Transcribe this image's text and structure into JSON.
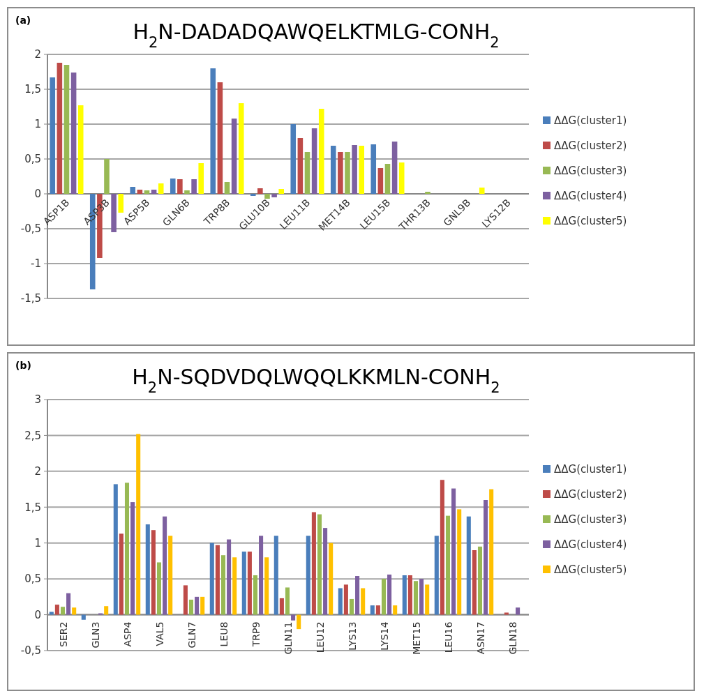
{
  "chart_data": [
    {
      "type": "bar",
      "title": "H$_{2}$N-DADADQAWQELKTMLG-CONH$_{2}$",
      "annotations": [
        "(a)"
      ],
      "categories": [
        "ASP1B",
        "ASP3B",
        "ASP5B",
        "GLN6B",
        "TRP8B",
        "GLU10B",
        "LEU11B",
        "MET14B",
        "LEU15B",
        "THR13B",
        "GNL9B",
        "LYS12B"
      ],
      "series": [
        {
          "name": "ΔΔG(cluster1)",
          "color": "#4a7ebb",
          "values": [
            1.67,
            -1.37,
            0.1,
            0.22,
            1.8,
            -0.03,
            1.0,
            0.69,
            0.71,
            0,
            0,
            0
          ]
        },
        {
          "name": "ΔΔG(cluster2)",
          "color": "#be4b48",
          "values": [
            1.88,
            -0.92,
            0.06,
            0.21,
            1.6,
            0.08,
            0.8,
            0.6,
            0.37,
            0,
            0,
            0
          ]
        },
        {
          "name": "ΔΔG(cluster3)",
          "color": "#98b954",
          "values": [
            1.85,
            0.5,
            0.05,
            0.05,
            0.17,
            -0.07,
            0.6,
            0.6,
            0.43,
            0.03,
            0,
            0
          ]
        },
        {
          "name": "ΔΔG(cluster4)",
          "color": "#7d60a0",
          "values": [
            1.74,
            -0.55,
            0.06,
            0.21,
            1.08,
            -0.05,
            0.94,
            0.7,
            0.75,
            0,
            0,
            0
          ]
        },
        {
          "name": "ΔΔG(cluster5)",
          "color": "#ffff00",
          "values": [
            1.27,
            -0.27,
            0.15,
            0.44,
            1.3,
            0.07,
            1.22,
            0.69,
            0.45,
            0,
            0.09,
            0
          ]
        }
      ],
      "ylim": [
        -1.5,
        2
      ],
      "yticks": [
        {
          "value": -1.5,
          "label": "-1,5"
        },
        -1,
        {
          "value": -0.5,
          "label": "-0,5"
        },
        0,
        {
          "value": 0.5,
          "label": "0,5"
        },
        1,
        {
          "value": 1.5,
          "label": "1,5"
        },
        2
      ],
      "grid": "y",
      "legend": "right"
    },
    {
      "type": "bar",
      "title": "H$_{2}$N-SQDVDQLWQQLKKMLN-CONH$_{2}$",
      "annotations": [
        "(b)"
      ],
      "categories": [
        "SER2",
        "GLN3",
        "ASP4",
        "VAL5",
        "GLN7",
        "LEU8",
        "TRP9",
        "GLN11",
        "LEU12",
        "LYS13",
        "LYS14",
        "MET15",
        "LEU16",
        "ASN17",
        "GLN18"
      ],
      "series": [
        {
          "name": "ΔΔG(cluster1)",
          "color": "#4a7ebb",
          "values": [
            0.04,
            -0.07,
            1.82,
            1.26,
            0,
            1.0,
            0.88,
            1.1,
            1.1,
            0.37,
            0.13,
            0.55,
            1.1,
            1.37,
            0
          ]
        },
        {
          "name": "ΔΔG(cluster2)",
          "color": "#be4b48",
          "values": [
            0.14,
            0,
            1.13,
            1.18,
            0.41,
            0.97,
            0.88,
            0.23,
            1.43,
            0.42,
            0.13,
            0.55,
            1.88,
            0.9,
            0.03
          ]
        },
        {
          "name": "ΔΔG(cluster3)",
          "color": "#98b954",
          "values": [
            0.11,
            0,
            1.84,
            0.73,
            0.21,
            0.83,
            0.55,
            0.38,
            1.4,
            0.22,
            0.5,
            0.47,
            1.38,
            0.95,
            0
          ]
        },
        {
          "name": "ΔΔG(cluster4)",
          "color": "#7d60a0",
          "values": [
            0.3,
            0.02,
            1.57,
            1.37,
            0.25,
            1.05,
            1.1,
            -0.08,
            1.21,
            0.54,
            0.56,
            0.5,
            1.76,
            1.6,
            0.1
          ]
        },
        {
          "name": "ΔΔG(cluster5)",
          "color": "#ffc000",
          "values": [
            0.1,
            0.12,
            2.52,
            1.1,
            0.25,
            0.8,
            0.8,
            -0.2,
            1.0,
            0.37,
            0.13,
            0.42,
            1.47,
            1.75,
            0
          ]
        }
      ],
      "ylim": [
        -0.5,
        3
      ],
      "yticks": [
        {
          "value": -0.5,
          "label": "-0,5"
        },
        0,
        {
          "value": 0.5,
          "label": "0,5"
        },
        1,
        {
          "value": 1.5,
          "label": "1,5"
        },
        2,
        {
          "value": 2.5,
          "label": "2,5"
        },
        3
      ],
      "grid": "y",
      "legend": "right"
    }
  ]
}
